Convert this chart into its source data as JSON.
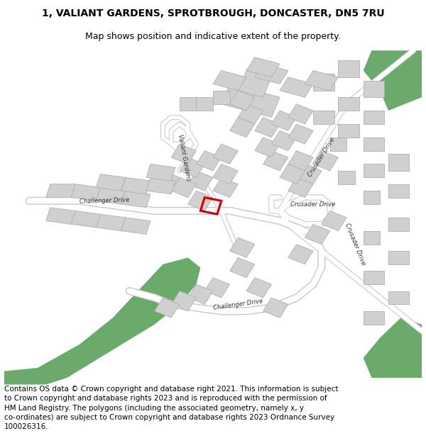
{
  "title_line1": "1, VALIANT GARDENS, SPROTBROUGH, DONCASTER, DN5 7RU",
  "title_line2": "Map shows position and indicative extent of the property.",
  "footer": "Contains OS data © Crown copyright and database right 2021. This information is subject\nto Crown copyright and database rights 2023 and is reproduced with the permission of\nHM Land Registry. The polygons (including the associated geometry, namely x, y\nco-ordinates) are subject to Crown copyright and database rights 2023 Ordnance Survey\n100026316.",
  "background_color": "#ffffff",
  "road_color": "#ffffff",
  "road_outline_color": "#c8c8c8",
  "building_color": "#d0d0d0",
  "building_outline": "#b0b0b0",
  "green_color": "#6aaa6a",
  "highlight_color": "#cc0000",
  "title_fontsize": 10,
  "footer_fontsize": 7.5,
  "map_bg": "#f8f8f8"
}
